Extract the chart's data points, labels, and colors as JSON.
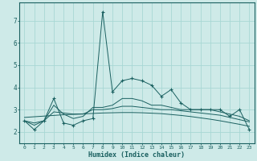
{
  "xlabel": "Humidex (Indice chaleur)",
  "bg_color": "#ceeae8",
  "line_color": "#1a6060",
  "grid_color": "#a8d8d4",
  "xlim": [
    -0.5,
    23.5
  ],
  "ylim": [
    1.5,
    7.8
  ],
  "xticks": [
    0,
    1,
    2,
    3,
    4,
    5,
    6,
    7,
    8,
    9,
    10,
    11,
    12,
    13,
    14,
    15,
    16,
    17,
    18,
    19,
    20,
    21,
    22,
    23
  ],
  "yticks": [
    2,
    3,
    4,
    5,
    6,
    7
  ],
  "humidex_main": [
    2.5,
    2.1,
    2.5,
    3.5,
    2.4,
    2.3,
    2.5,
    2.6,
    7.4,
    3.8,
    4.3,
    4.4,
    4.3,
    4.1,
    3.6,
    3.9,
    3.3,
    3.0,
    3.0,
    3.0,
    3.0,
    2.7,
    3.0,
    2.1
  ],
  "humidex_smooth1": [
    2.5,
    2.3,
    2.5,
    3.2,
    2.8,
    2.6,
    2.7,
    3.1,
    3.1,
    3.2,
    3.5,
    3.5,
    3.4,
    3.2,
    3.2,
    3.1,
    3.0,
    3.0,
    3.0,
    3.0,
    2.9,
    2.8,
    2.7,
    2.5
  ],
  "humidex_smooth2": [
    2.5,
    2.4,
    2.5,
    2.9,
    2.85,
    2.8,
    2.8,
    3.0,
    3.0,
    3.05,
    3.15,
    3.15,
    3.1,
    3.05,
    3.0,
    3.0,
    2.95,
    2.9,
    2.85,
    2.8,
    2.75,
    2.65,
    2.55,
    2.45
  ],
  "humidex_trend": [
    2.65,
    2.68,
    2.71,
    2.74,
    2.77,
    2.79,
    2.81,
    2.83,
    2.85,
    2.86,
    2.87,
    2.87,
    2.86,
    2.84,
    2.82,
    2.78,
    2.74,
    2.69,
    2.63,
    2.57,
    2.5,
    2.42,
    2.34,
    2.25
  ]
}
